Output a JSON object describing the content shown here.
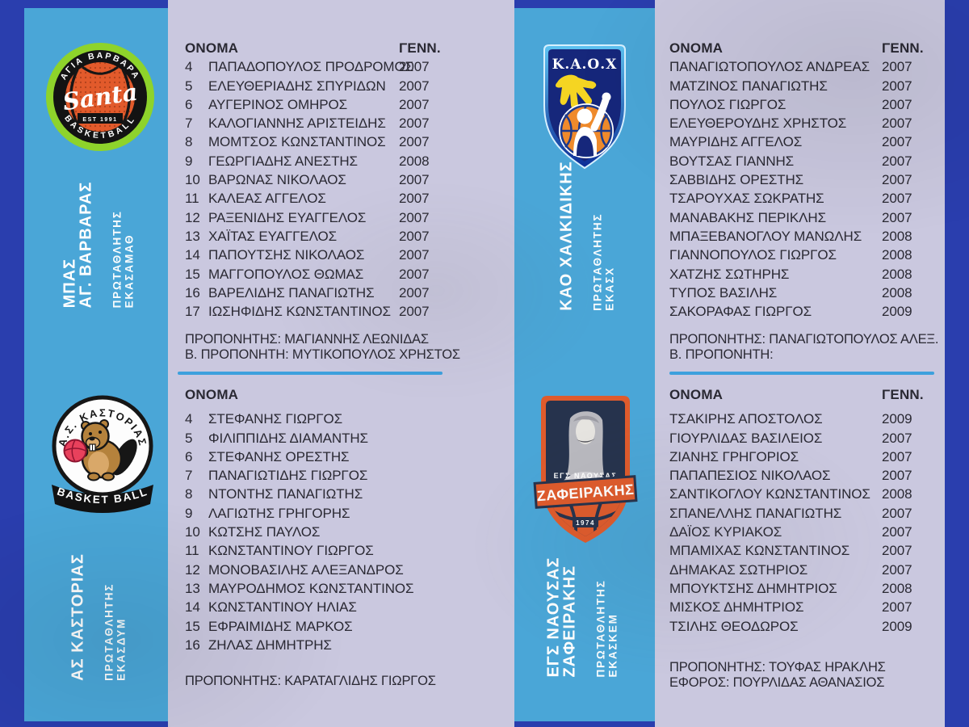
{
  "palette": {
    "frame": "#2a3eae",
    "strip": "#4aa6d7",
    "panel": "#cac8df",
    "ink": "#2a2933",
    "line": "#3da0dd",
    "white": "#ffffff"
  },
  "teams": [
    {
      "id": "mpas-ag-varvaras",
      "side_title_lines": [
        "ΜΠΑΣ",
        "ΑΓ. ΒΑΡΒΑΡΑΣ"
      ],
      "side_subtitle_lines": [
        "ΠΡΩΤΑΘΛΗΤΗΣ",
        "ΕΚΑΣΑΜΑΘ"
      ],
      "logo": {
        "arc_top": "ΑΓΙΑ ΒΑΡΒΑΡΑ",
        "script": "Santa",
        "est": "EST 1991",
        "arc_bottom": "BASKETBALL"
      },
      "table": {
        "name_header": "ΟΝΟΜΑ",
        "year_header": "ΓΕΝΝ.",
        "players": [
          {
            "num": "4",
            "name": "ΠΑΠΑΔΟΠΟΥΛΟΣ ΠΡΟΔΡΟΜΟΣ",
            "year": "2007"
          },
          {
            "num": "5",
            "name": "ΕΛΕΥΘΕΡΙΑΔΗΣ ΣΠΥΡΙΔΩΝ",
            "year": "2007"
          },
          {
            "num": "6",
            "name": "ΑΥΓΕΡΙΝΟΣ ΟΜΗΡΟΣ",
            "year": "2007"
          },
          {
            "num": "7",
            "name": "ΚΑΛΟΓΙΑΝΝΗΣ ΑΡΙΣΤΕΙΔΗΣ",
            "year": "2007"
          },
          {
            "num": "8",
            "name": "ΜΟΜΤΣΟΣ ΚΩΝΣΤΑΝΤΙΝΟΣ",
            "year": "2007"
          },
          {
            "num": "9",
            "name": "ΓΕΩΡΓΙΑΔΗΣ ΑΝΕΣΤΗΣ",
            "year": "2008"
          },
          {
            "num": "10",
            "name": "ΒΑΡΩΝΑΣ ΝΙΚΟΛΑΟΣ",
            "year": "2007"
          },
          {
            "num": "11",
            "name": "ΚΑΛΕΑΣ ΑΓΓΕΛΟΣ",
            "year": "2007"
          },
          {
            "num": "12",
            "name": "ΡΑΞΕΝΙΔΗΣ ΕΥΑΓΓΕΛΟΣ",
            "year": "2007"
          },
          {
            "num": "13",
            "name": "ΧΑΪΤΑΣ ΕΥΑΓΓΕΛΟΣ",
            "year": "2007"
          },
          {
            "num": "14",
            "name": "ΠΑΠΟΥΤΣΗΣ ΝΙΚΟΛΑΟΣ",
            "year": "2007"
          },
          {
            "num": "15",
            "name": "ΜΑΓΓΟΠΟΥΛΟΣ ΘΩΜΑΣ",
            "year": "2007"
          },
          {
            "num": "16",
            "name": "ΒΑΡΕΛΙΔΗΣ ΠΑΝΑΓΙΩΤΗΣ",
            "year": "2007"
          },
          {
            "num": "17",
            "name": "ΙΩΣΗΦΙΔΗΣ ΚΩΝΣΤΑΝΤΙΝΟΣ",
            "year": "2007"
          }
        ]
      },
      "staff": [
        "ΠΡΟΠΟΝΗΤΗΣ: ΜΑΓΙΑΝΝΗΣ ΛΕΩΝΙΔΑΣ",
        "Β. ΠΡΟΠΟΝΗΤΗ: ΜΥΤΙΚΟΠΟΥΛΟΣ ΧΡΗΣΤΟΣ"
      ]
    },
    {
      "id": "kao-chalkidikis",
      "side_title_lines": [
        "ΚΑΟ ΧΑΛΚΙΔΙΚΗΣ"
      ],
      "side_subtitle_lines": [
        "ΠΡΩΤΑΘΛΗΤΗΣ",
        "ΕΚΑΣΧ"
      ],
      "logo": {
        "title": "Κ.Α.Ο.Χ"
      },
      "table": {
        "name_header": "ΟΝΟΜΑ",
        "year_header": "ΓΕΝΝ.",
        "players": [
          {
            "name": "ΠΑΝΑΓΙΩΤΟΠΟΥΛΟΣ ΑΝΔΡΕΑΣ",
            "year": "2007"
          },
          {
            "name": "ΜΑΤΖΙΝΟΣ ΠΑΝΑΓΙΩΤΗΣ",
            "year": "2007"
          },
          {
            "name": "ΠΟΥΛΟΣ ΓΙΩΡΓΟΣ",
            "year": "2007"
          },
          {
            "name": "ΕΛΕΥΘΕΡΟΥΔΗΣ ΧΡΗΣΤΟΣ",
            "year": "2007"
          },
          {
            "name": "ΜΑΥΡΙΔΗΣ ΑΓΓΕΛΟΣ",
            "year": "2007"
          },
          {
            "name": "ΒΟΥΤΣΑΣ ΓΙΑΝΝΗΣ",
            "year": "2007"
          },
          {
            "name": "ΣΑΒΒΙΔΗΣ ΟΡΕΣΤΗΣ",
            "year": "2007"
          },
          {
            "name": "ΤΣΑΡΟΥΧΑΣ ΣΩΚΡΑΤΗΣ",
            "year": "2007"
          },
          {
            "name": "ΜΑΝΑΒΑΚΗΣ ΠΕΡΙΚΛΗΣ",
            "year": "2007"
          },
          {
            "name": "ΜΠΑΞΕΒΑΝΟΓΛΟΥ ΜΑΝΩΛΗΣ",
            "year": "2008"
          },
          {
            "name": "ΓΙΑΝΝΟΠΟΥΛΟΣ ΓΙΩΡΓΟΣ",
            "year": "2008"
          },
          {
            "name": "ΧΑΤΖΗΣ ΣΩΤΗΡΗΣ",
            "year": "2008"
          },
          {
            "name": "ΤΥΠΟΣ ΒΑΣΙΛΗΣ",
            "year": "2008"
          },
          {
            "name": "ΣΑΚΟΡΑΦΑΣ ΓΙΩΡΓΟΣ",
            "year": "2009"
          }
        ]
      },
      "staff": [
        "ΠΡΟΠΟΝΗΤΗΣ: ΠΑΝΑΓΙΩΤΟΠΟΥΛΟΣ ΑΛΕΞ.",
        "Β. ΠΡΟΠΟΝΗΤΗ:"
      ]
    },
    {
      "id": "as-kastorias",
      "side_title_lines": [
        "ΑΣ ΚΑΣΤΟΡΙΑΣ"
      ],
      "side_subtitle_lines": [
        "ΠΡΩΤΑΘΛΗΤΗΣ",
        "ΕΚΑΣΔΥΜ"
      ],
      "logo": {
        "arc_top": "Α.Σ. ΚΑΣΤΟΡΙΑΣ",
        "banner": "BASKET BALL"
      },
      "table": {
        "name_header": "ΟΝΟΜΑ",
        "year_header": "",
        "players": [
          {
            "num": "4",
            "name": "ΣΤΕΦΑΝΗΣ ΓΙΩΡΓΟΣ"
          },
          {
            "num": "5",
            "name": "ΦΙΛΙΠΠΙΔΗΣ ΔΙΑΜΑΝΤΗΣ"
          },
          {
            "num": "6",
            "name": "ΣΤΕΦΑΝΗΣ ΟΡΕΣΤΗΣ"
          },
          {
            "num": "7",
            "name": "ΠΑΝΑΓΙΩΤΙΔΗΣ ΓΙΩΡΓΟΣ"
          },
          {
            "num": "8",
            "name": "ΝΤΟΝΤΗΣ ΠΑΝΑΓΙΩΤΗΣ"
          },
          {
            "num": "9",
            "name": "ΛΑΓΙΩΤΗΣ ΓΡΗΓΟΡΗΣ"
          },
          {
            "num": "10",
            "name": "ΚΩΤΣΗΣ ΠΑΥΛΟΣ"
          },
          {
            "num": "11",
            "name": "ΚΩΝΣΤΑΝΤΙΝΟΥ ΓΙΩΡΓΟΣ"
          },
          {
            "num": "12",
            "name": "ΜΟΝΟΒΑΣΙΛΗΣ ΑΛΕΞΑΝΔΡΟΣ"
          },
          {
            "num": "13",
            "name": "ΜΑΥΡΟΔΗΜΟΣ ΚΩΝΣΤΑΝΤΙΝΟΣ"
          },
          {
            "num": "14",
            "name": "ΚΩΝΣΤΑΝΤΙΝΟΥ ΗΛΙΑΣ"
          },
          {
            "num": "15",
            "name": "ΕΦΡΑΙΜΙΔΗΣ ΜΑΡΚΟΣ"
          },
          {
            "num": "16",
            "name": "ΖΗΛΑΣ ΔΗΜΗΤΡΗΣ"
          }
        ]
      },
      "staff": [
        "ΠΡΟΠΟΝΗΤΗΣ: ΚΑΡΑΤΑΓΛΙΔΗΣ ΓΙΩΡΓΟΣ"
      ]
    },
    {
      "id": "egs-naousas-zafeirakis",
      "side_title_lines": [
        "ΕΓΣ ΝΑΟΥΣΑΣ",
        "ΖΑΦΕΙΡΑΚΗΣ"
      ],
      "side_subtitle_lines": [
        "ΠΡΩΤΑΘΛΗΤΗΣ",
        "ΕΚΑΣΚΕΜ"
      ],
      "logo": {
        "club_small": "ΕΓΣ ΝΑΟΥΣΑΣ",
        "club_big": "ΖΑΦΕΙΡΑΚΗΣ",
        "year": "1974"
      },
      "table": {
        "name_header": "ΟΝΟΜΑ",
        "year_header": "ΓΕΝΝ.",
        "players": [
          {
            "name": "ΤΣΑΚΙΡΗΣ ΑΠΟΣΤΟΛΟΣ",
            "year": "2009"
          },
          {
            "name": "ΓΙΟΥΡΛΙΔΑΣ ΒΑΣΙΛΕΙΟΣ",
            "year": "2007"
          },
          {
            "name": "ΖΙΑΝΗΣ ΓΡΗΓΟΡΙΟΣ",
            "year": "2007"
          },
          {
            "name": "ΠΑΠΑΠΕΣΙΟΣ ΝΙΚΟΛΑΟΣ",
            "year": "2007"
          },
          {
            "name": "ΣΑΝΤΙΚΟΓΛΟΥ ΚΩΝΣΤΑΝΤΙΝΟΣ",
            "year": "2008"
          },
          {
            "name": "ΣΠΑΝΕΛΛΗΣ ΠΑΝΑΓΙΩΤΗΣ",
            "year": "2007"
          },
          {
            "name": "ΔΑΪΟΣ ΚΥΡΙΑΚΟΣ",
            "year": "2007"
          },
          {
            "name": "ΜΠΑΜΙΧΑΣ ΚΩΝΣΤΑΝΤΙΝΟΣ",
            "year": "2007"
          },
          {
            "name": "ΔΗΜΑΚΑΣ ΣΩΤΗΡΙΟΣ",
            "year": "2007"
          },
          {
            "name": "ΜΠΟΥΚΤΣΗΣ ΔΗΜΗΤΡΙΟΣ",
            "year": "2008"
          },
          {
            "name": "ΜΙΣΚΟΣ ΔΗΜΗΤΡΙΟΣ",
            "year": "2007"
          },
          {
            "name": "ΤΣΙΛΗΣ ΘΕΟΔΩΡΟΣ",
            "year": "2009"
          }
        ]
      },
      "staff": [
        "ΠΡΟΠΟΝΗΤΗΣ: ΤΟΥΦΑΣ ΗΡΑΚΛΗΣ",
        "ΕΦΟΡΟΣ: ΠΟΥΡΛΙΔΑΣ ΑΘΑΝΑΣΙΟΣ"
      ]
    }
  ]
}
